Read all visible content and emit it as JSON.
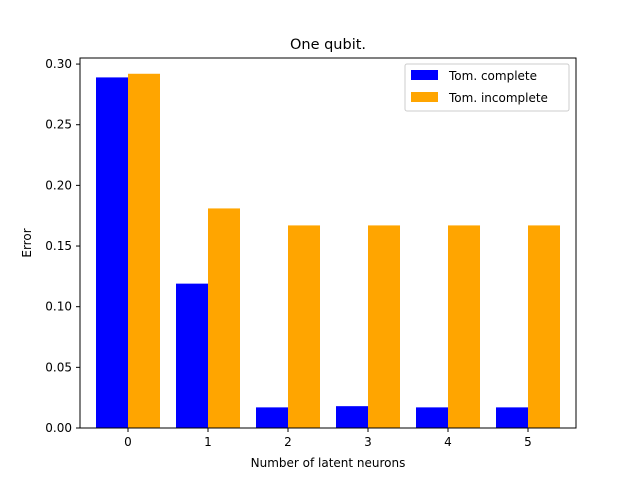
{
  "chart_data": {
    "type": "bar",
    "title": "One qubit.",
    "xlabel": "Number of latent neurons",
    "ylabel": "Error",
    "categories": [
      "0",
      "1",
      "2",
      "3",
      "4",
      "5"
    ],
    "ylim": [
      0,
      0.3
    ],
    "yticks": [
      "0.00",
      "0.05",
      "0.10",
      "0.15",
      "0.20",
      "0.25",
      "0.30"
    ],
    "series": [
      {
        "name": "Tom. complete",
        "color": "#0000ff",
        "values": [
          0.289,
          0.119,
          0.017,
          0.018,
          0.017,
          0.017
        ]
      },
      {
        "name": "Tom. incomplete",
        "color": "#ffa500",
        "values": [
          0.292,
          0.181,
          0.167,
          0.167,
          0.167,
          0.167
        ]
      }
    ],
    "grid": false,
    "legend_position": "top-right"
  }
}
